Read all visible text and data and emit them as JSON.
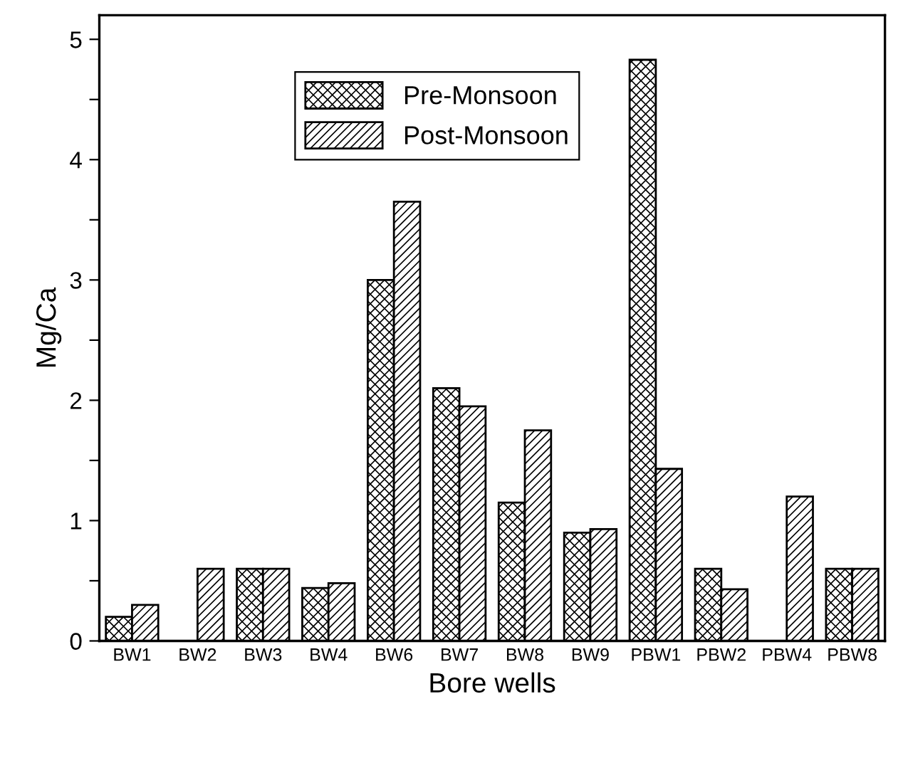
{
  "chart_data": {
    "type": "bar",
    "xlabel": "Bore wells",
    "ylabel": "Mg/Ca",
    "categories": [
      "BW1",
      "BW2",
      "BW3",
      "BW4",
      "BW6",
      "BW7",
      "BW8",
      "BW9",
      "PBW1",
      "PBW2",
      "PBW4",
      "PBW8"
    ],
    "series": [
      {
        "name": "Pre-Monsoon",
        "color": "#000000",
        "values": [
          0.2,
          null,
          0.6,
          0.44,
          3.0,
          2.1,
          1.15,
          0.9,
          4.83,
          0.6,
          null,
          0.6
        ]
      },
      {
        "name": "Post-Monsoon",
        "color": "#000000",
        "values": [
          0.3,
          0.6,
          0.6,
          0.48,
          3.65,
          1.95,
          1.75,
          0.93,
          1.43,
          0.43,
          1.2,
          0.6
        ]
      }
    ],
    "ylim": [
      0,
      5.2
    ],
    "yticks": [
      0,
      {
        "value": 0.5,
        "label": null
      },
      1,
      {
        "value": 1.5,
        "label": null
      },
      2,
      {
        "value": 2.5,
        "label": null
      },
      3,
      {
        "value": 3.5,
        "label": null
      },
      4,
      {
        "value": 4.5,
        "label": null
      },
      5
    ],
    "legend": "top",
    "grid": false
  }
}
